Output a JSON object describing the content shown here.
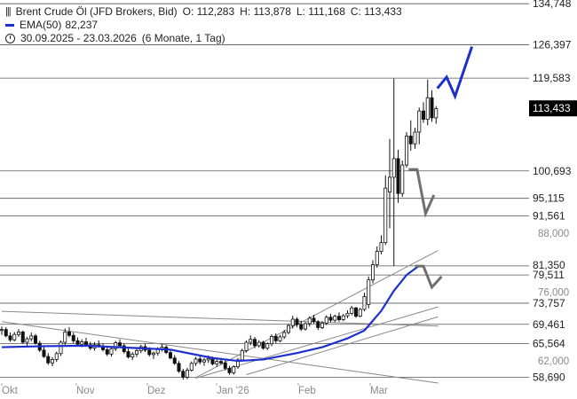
{
  "legend": {
    "instrument": "Brent Crude Öl (JFD Brokers, Bid)",
    "open": "O: 112,283",
    "high": "H: 113,878",
    "low": "L: 111,168",
    "close": "C: 113,433",
    "ema_label": "EMA(50)",
    "ema_value": "82,237",
    "range": "30.09.2025 - 23.03.2026",
    "period": "(6 Monate, 1 Tag)"
  },
  "colors": {
    "ema": "#1e2fcf",
    "candle": "#111111",
    "gridline": "#555555",
    "trendline": "#888888",
    "bull_arrow": "#1e2fcf",
    "bear_arrow": "#707070",
    "last_price_bg": "#000000"
  },
  "chart_data": {
    "type": "candlestick",
    "x_tick_labels": [
      "Okt",
      "Nov",
      "Dez",
      "Jan '26",
      "Feb",
      "Mar"
    ],
    "y_tick_labels": [
      62.0,
      76.0,
      88.0
    ],
    "y_tick_label_texts": [
      "62,000",
      "76,000",
      "88,000"
    ],
    "ylim": [
      57.5,
      135.5
    ],
    "resistance_support_levels": [
      134.748,
      126.397,
      119.583,
      100.693,
      95.115,
      91.561,
      81.35,
      79.511,
      73.757,
      69.461,
      65.564,
      58.69
    ],
    "level_labels": [
      "134,748",
      "126,397",
      "119,583",
      "100,693",
      "95,115",
      "91,561",
      "81,350",
      "79,511",
      "73,757",
      "69,461",
      "65,564",
      "58,690"
    ],
    "last_price": 113.433,
    "last_price_label": "113,433",
    "ohlc": [
      [
        68.2,
        69.0,
        67.3,
        68.4
      ],
      [
        68.4,
        68.9,
        66.8,
        67.1
      ],
      [
        67.1,
        67.8,
        65.9,
        66.3
      ],
      [
        66.3,
        67.9,
        66.0,
        67.4
      ],
      [
        67.4,
        68.5,
        66.9,
        67.9
      ],
      [
        67.9,
        68.2,
        65.5,
        65.8
      ],
      [
        65.8,
        66.9,
        64.9,
        66.5
      ],
      [
        66.5,
        67.8,
        66.0,
        67.1
      ],
      [
        67.1,
        67.5,
        65.3,
        65.6
      ],
      [
        65.6,
        66.1,
        63.8,
        64.2
      ],
      [
        64.2,
        64.9,
        62.6,
        62.9
      ],
      [
        62.9,
        63.6,
        61.2,
        61.6
      ],
      [
        61.6,
        62.8,
        60.9,
        62.3
      ],
      [
        62.3,
        63.9,
        61.8,
        63.5
      ],
      [
        63.5,
        66.2,
        63.0,
        65.8
      ],
      [
        65.8,
        68.6,
        65.2,
        67.9
      ],
      [
        67.9,
        68.9,
        66.8,
        67.2
      ],
      [
        67.2,
        67.8,
        65.6,
        66.1
      ],
      [
        66.1,
        66.8,
        65.0,
        65.4
      ],
      [
        65.4,
        66.4,
        64.8,
        65.9
      ],
      [
        65.9,
        66.7,
        65.1,
        65.3
      ],
      [
        65.3,
        65.9,
        64.2,
        64.6
      ],
      [
        64.6,
        65.8,
        64.1,
        65.3
      ],
      [
        65.3,
        66.2,
        64.7,
        65.0
      ],
      [
        65.0,
        65.6,
        63.9,
        64.3
      ],
      [
        64.3,
        64.8,
        63.0,
        63.4
      ],
      [
        63.4,
        64.9,
        62.9,
        64.5
      ],
      [
        64.5,
        66.1,
        64.0,
        65.7
      ],
      [
        65.7,
        66.4,
        64.8,
        65.1
      ],
      [
        65.1,
        65.5,
        63.5,
        63.9
      ],
      [
        63.9,
        64.5,
        62.5,
        62.8
      ],
      [
        62.8,
        63.8,
        62.2,
        63.4
      ],
      [
        63.4,
        64.6,
        62.8,
        64.1
      ],
      [
        64.1,
        65.3,
        63.6,
        64.9
      ],
      [
        64.9,
        65.5,
        63.8,
        64.2
      ],
      [
        64.2,
        64.8,
        62.9,
        63.3
      ],
      [
        63.3,
        63.9,
        62.4,
        63.6
      ],
      [
        63.6,
        64.8,
        63.1,
        64.5
      ],
      [
        64.5,
        65.4,
        63.9,
        64.8
      ],
      [
        64.8,
        65.2,
        63.4,
        63.7
      ],
      [
        63.7,
        64.1,
        62.3,
        62.6
      ],
      [
        62.6,
        63.2,
        61.2,
        61.5
      ],
      [
        61.5,
        62.0,
        59.6,
        59.9
      ],
      [
        59.9,
        60.4,
        58.2,
        58.7
      ],
      [
        58.7,
        60.6,
        58.3,
        60.1
      ],
      [
        60.1,
        61.9,
        59.8,
        61.5
      ],
      [
        61.5,
        62.8,
        61.0,
        62.4
      ],
      [
        62.4,
        62.9,
        61.3,
        61.8
      ],
      [
        61.8,
        62.6,
        61.0,
        62.2
      ],
      [
        62.2,
        63.1,
        61.6,
        62.5
      ],
      [
        62.5,
        62.9,
        61.1,
        61.4
      ],
      [
        61.4,
        62.3,
        60.8,
        61.9
      ],
      [
        61.9,
        62.6,
        61.2,
        61.6
      ],
      [
        61.6,
        62.2,
        60.1,
        60.5
      ],
      [
        60.5,
        61.0,
        59.2,
        59.6
      ],
      [
        59.6,
        61.1,
        59.2,
        60.8
      ],
      [
        60.8,
        62.6,
        60.4,
        62.2
      ],
      [
        62.2,
        64.5,
        61.9,
        64.1
      ],
      [
        64.1,
        66.2,
        63.7,
        65.8
      ],
      [
        65.8,
        67.2,
        65.2,
        66.4
      ],
      [
        66.4,
        66.9,
        64.6,
        65.1
      ],
      [
        65.1,
        66.2,
        64.7,
        65.8
      ],
      [
        65.8,
        66.1,
        64.3,
        64.6
      ],
      [
        64.6,
        65.8,
        64.2,
        65.5
      ],
      [
        65.5,
        67.4,
        65.0,
        67.0
      ],
      [
        67.0,
        67.6,
        65.6,
        66.1
      ],
      [
        66.1,
        67.3,
        65.8,
        66.9
      ],
      [
        66.9,
        68.3,
        66.5,
        67.8
      ],
      [
        67.8,
        69.6,
        67.4,
        69.2
      ],
      [
        69.2,
        71.2,
        68.6,
        70.5
      ],
      [
        70.5,
        70.9,
        68.9,
        69.4
      ],
      [
        69.4,
        70.2,
        68.1,
        68.5
      ],
      [
        68.5,
        69.9,
        68.2,
        69.6
      ],
      [
        69.6,
        71.1,
        69.0,
        70.7
      ],
      [
        70.7,
        71.4,
        69.6,
        70.0
      ],
      [
        70.0,
        70.3,
        68.3,
        68.8
      ],
      [
        68.8,
        70.1,
        68.5,
        69.7
      ],
      [
        69.7,
        71.3,
        69.3,
        70.9
      ],
      [
        70.9,
        71.6,
        69.9,
        70.3
      ],
      [
        70.3,
        71.4,
        69.9,
        71.1
      ],
      [
        71.1,
        71.9,
        70.0,
        70.4
      ],
      [
        70.4,
        71.6,
        70.1,
        71.2
      ],
      [
        71.2,
        72.3,
        70.7,
        71.7
      ],
      [
        71.7,
        73.2,
        71.3,
        72.8
      ],
      [
        72.8,
        73.0,
        70.8,
        71.1
      ],
      [
        71.1,
        72.8,
        70.9,
        72.5
      ],
      [
        72.5,
        75.9,
        72.1,
        75.1
      ],
      [
        73.5,
        79.2,
        72.7,
        78.5
      ],
      [
        78.5,
        82.5,
        77.8,
        81.6
      ],
      [
        81.6,
        85.3,
        81.0,
        84.3
      ],
      [
        84.3,
        87.6,
        83.7,
        86.1
      ],
      [
        86.1,
        99.8,
        85.6,
        97.2
      ],
      [
        96.4,
        107.2,
        89.0,
        99.4
      ],
      [
        99.4,
        119.5,
        81.3,
        103.2
      ],
      [
        103.2,
        105.0,
        94.2,
        96.1
      ],
      [
        96.1,
        102.8,
        95.4,
        101.9
      ],
      [
        101.9,
        108.6,
        101.4,
        107.8
      ],
      [
        107.8,
        111.0,
        104.8,
        106.2
      ],
      [
        106.2,
        109.5,
        105.2,
        108.6
      ],
      [
        108.6,
        113.6,
        106.1,
        112.9
      ],
      [
        112.9,
        114.7,
        110.5,
        111.2
      ],
      [
        111.2,
        119.3,
        110.0,
        115.6
      ],
      [
        115.6,
        117.1,
        110.7,
        111.5
      ],
      [
        111.5,
        113.9,
        110.3,
        113.4
      ]
    ],
    "ema50": [
      [
        0,
        64.8
      ],
      [
        10,
        65.0
      ],
      [
        20,
        65.1
      ],
      [
        30,
        64.7
      ],
      [
        40,
        64.3
      ],
      [
        50,
        62.6
      ],
      [
        56,
        62.0
      ],
      [
        62,
        62.3
      ],
      [
        70,
        63.6
      ],
      [
        76,
        64.8
      ],
      [
        82,
        66.6
      ],
      [
        86,
        68.2
      ],
      [
        90,
        72.2
      ],
      [
        93,
        76.3
      ],
      [
        96,
        79.5
      ],
      [
        99,
        81.4
      ]
    ],
    "trendlines": [
      [
        [
          0,
          70.0
        ],
        [
          103.5,
          57.5
        ]
      ],
      [
        [
          0,
          72.1
        ],
        [
          103.5,
          69.1
        ]
      ],
      [
        [
          46,
          58.5
        ],
        [
          103.5,
          73.0
        ]
      ],
      [
        [
          58,
          59.2
        ],
        [
          103.5,
          71.0
        ]
      ],
      [
        [
          46,
          58.6
        ],
        [
          103.5,
          84.5
        ]
      ]
    ],
    "projections": [
      {
        "kind": "bull",
        "points": [
          [
            103.3,
            117.5
          ],
          [
            105.5,
            119.8
          ],
          [
            107.5,
            115.9
          ],
          [
            111.5,
            126.0
          ]
        ]
      },
      {
        "kind": "bear",
        "points": [
          [
            96.5,
            101.0
          ],
          [
            98.5,
            101.0
          ],
          [
            100.5,
            92.0
          ],
          [
            102.5,
            95.8
          ]
        ]
      },
      {
        "kind": "bear",
        "points": [
          [
            98.0,
            81.3
          ],
          [
            100.0,
            81.3
          ],
          [
            102.0,
            77.0
          ],
          [
            104.3,
            79.2
          ]
        ]
      }
    ]
  }
}
